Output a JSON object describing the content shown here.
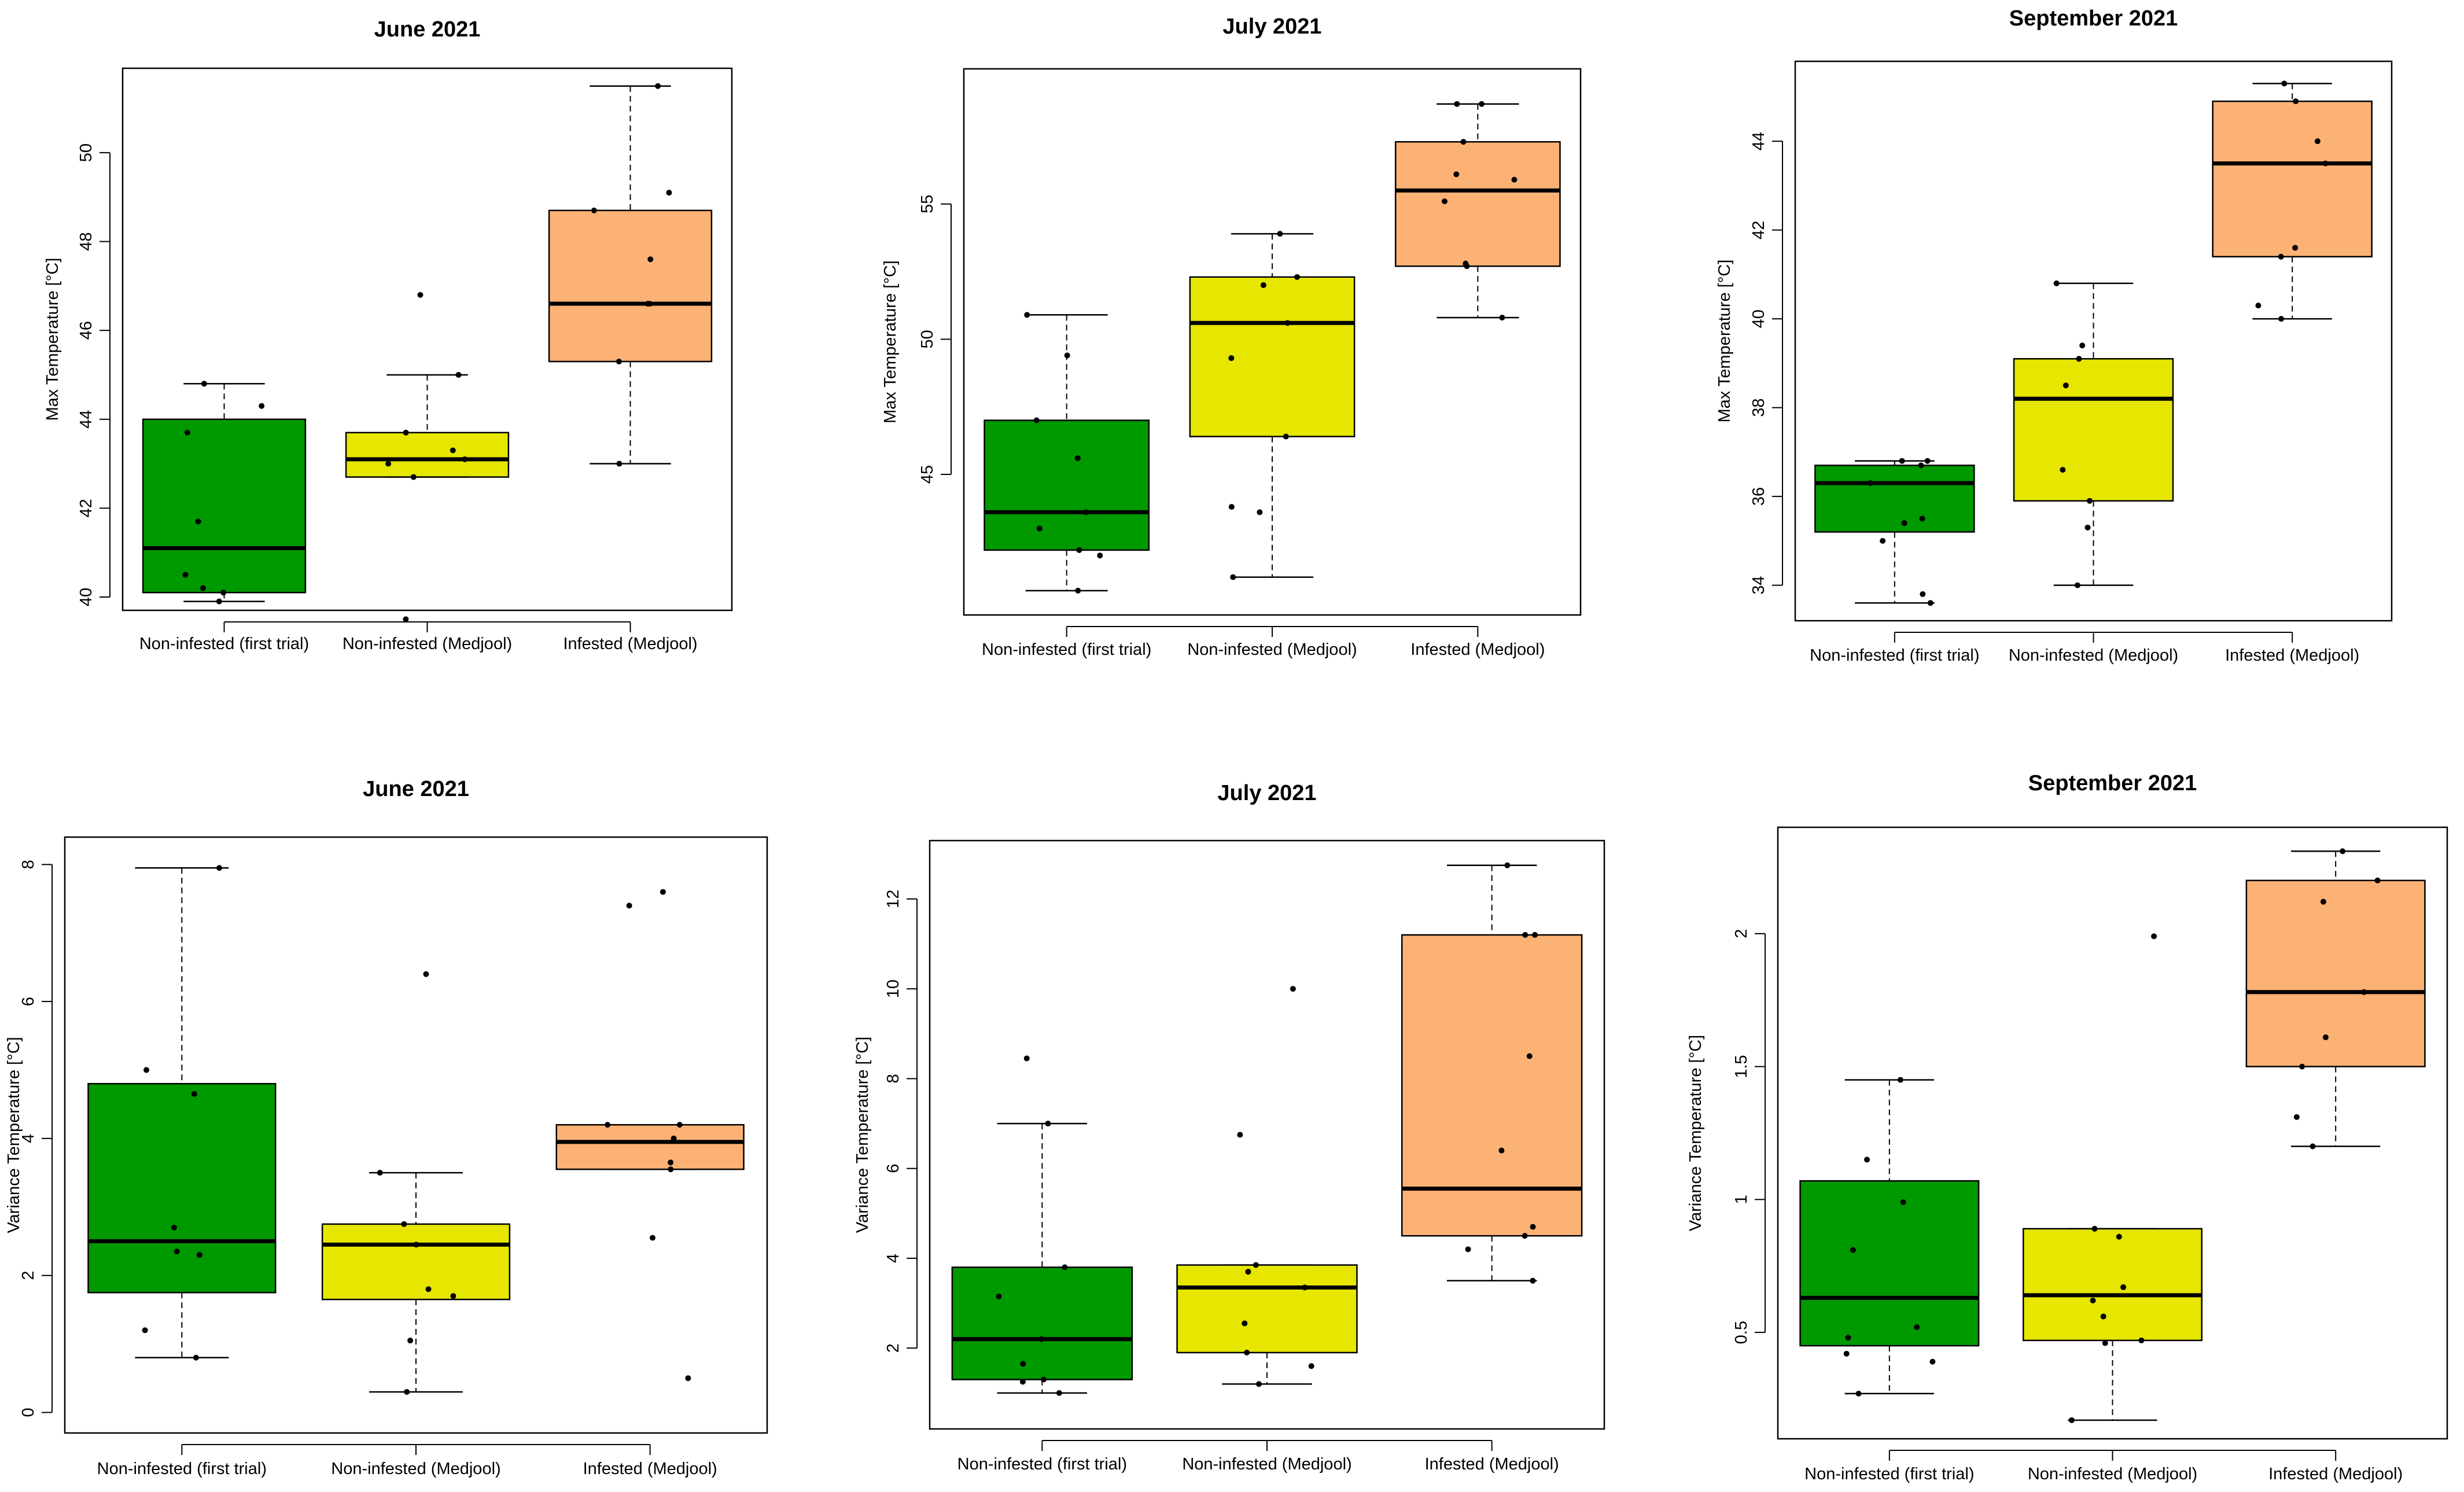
{
  "figure": {
    "colors": {
      "non_infested_first": "#009900",
      "non_infested_medjool": "#E6E600",
      "infested_medjool": "#FDB275",
      "box_border": "#000000"
    }
  },
  "chart_data": [
    {
      "type": "box",
      "title": "June 2021",
      "ylabel": "Max Temperature [°C]",
      "xlabel": "",
      "ylim": [
        39.7,
        51.9
      ],
      "yticks": [
        40,
        42,
        44,
        46,
        48,
        50
      ],
      "categories": [
        "Non-infested (first trial)",
        "Non-infested (Medjool)",
        "Infested (Medjool)"
      ],
      "boxes": [
        {
          "whisker_low": 39.9,
          "q1": 40.1,
          "median": 41.1,
          "q3": 44.0,
          "whisker_high": 44.8
        },
        {
          "whisker_low": 42.7,
          "q1": 42.7,
          "median": 43.1,
          "q3": 43.7,
          "whisker_high": 45.0
        },
        {
          "whisker_low": 43.0,
          "q1": 45.3,
          "median": 46.6,
          "q3": 48.7,
          "whisker_high": 51.5
        }
      ],
      "points": [
        [
          39.9,
          40.1,
          40.2,
          40.5,
          41.7,
          43.7,
          44.3,
          44.8
        ],
        [
          39.5,
          42.7,
          43.0,
          43.1,
          43.3,
          43.7,
          45.0,
          46.8
        ],
        [
          43.0,
          45.3,
          46.6,
          46.6,
          47.6,
          48.7,
          49.1,
          51.5
        ]
      ]
    },
    {
      "type": "box",
      "title": "July 2021",
      "ylabel": "Max Temperature [°C]",
      "xlabel": "",
      "ylim": [
        39.8,
        60.0
      ],
      "yticks": [
        45,
        50,
        55
      ],
      "categories": [
        "Non-infested (first trial)",
        "Non-infested (Medjool)",
        "Infested (Medjool)"
      ],
      "boxes": [
        {
          "whisker_low": 40.7,
          "q1": 42.2,
          "median": 43.6,
          "q3": 47.0,
          "whisker_high": 50.9
        },
        {
          "whisker_low": 41.2,
          "q1": 46.4,
          "median": 50.6,
          "q3": 52.3,
          "whisker_high": 53.9
        },
        {
          "whisker_low": 50.8,
          "q1": 52.7,
          "median": 55.5,
          "q3": 57.3,
          "whisker_high": 58.7
        }
      ],
      "points": [
        [
          40.7,
          42.0,
          42.2,
          43.0,
          43.6,
          45.6,
          47.0,
          49.4,
          50.9
        ],
        [
          41.2,
          43.6,
          43.8,
          46.4,
          49.3,
          50.6,
          52.0,
          52.3,
          53.9
        ],
        [
          50.8,
          52.7,
          52.8,
          55.1,
          55.9,
          56.1,
          57.3,
          58.7,
          58.7
        ]
      ]
    },
    {
      "type": "box",
      "title": "September 2021",
      "ylabel": "Max Temperature [°C]",
      "xlabel": "",
      "ylim": [
        33.2,
        45.8
      ],
      "yticks": [
        34,
        36,
        38,
        40,
        42,
        44
      ],
      "categories": [
        "Non-infested (first trial)",
        "Non-infested (Medjool)",
        "Infested (Medjool)"
      ],
      "boxes": [
        {
          "whisker_low": 33.6,
          "q1": 35.2,
          "median": 36.3,
          "q3": 36.7,
          "whisker_high": 36.8
        },
        {
          "whisker_low": 34.0,
          "q1": 35.9,
          "median": 38.2,
          "q3": 39.1,
          "whisker_high": 40.8
        },
        {
          "whisker_low": 40.0,
          "q1": 41.4,
          "median": 43.5,
          "q3": 44.9,
          "whisker_high": 45.3
        }
      ],
      "points": [
        [
          33.6,
          33.8,
          35.0,
          35.4,
          35.5,
          36.3,
          36.7,
          36.8,
          36.8
        ],
        [
          34.0,
          35.3,
          35.9,
          36.6,
          38.5,
          39.1,
          39.4,
          40.8
        ],
        [
          40.0,
          40.3,
          41.4,
          41.6,
          43.5,
          44.0,
          44.9,
          45.3
        ]
      ]
    },
    {
      "type": "box",
      "title": "June 2021",
      "ylabel": "Variance Temperature [°C]",
      "xlabel": "",
      "ylim": [
        -0.3,
        8.4
      ],
      "yticks": [
        0,
        2,
        4,
        6,
        8
      ],
      "categories": [
        "Non-infested (first trial)",
        "Non-infested (Medjool)",
        "Infested (Medjool)"
      ],
      "boxes": [
        {
          "whisker_low": 0.8,
          "q1": 1.75,
          "median": 2.5,
          "q3": 4.8,
          "whisker_high": 7.95
        },
        {
          "whisker_low": 0.3,
          "q1": 1.65,
          "median": 2.45,
          "q3": 2.75,
          "whisker_high": 3.5
        },
        {
          "whisker_low": 3.55,
          "q1": 3.55,
          "median": 3.95,
          "q3": 4.2,
          "whisker_high": 4.2
        }
      ],
      "points": [
        [
          0.8,
          1.2,
          2.3,
          2.35,
          2.7,
          4.65,
          5.0,
          7.95
        ],
        [
          0.3,
          1.05,
          1.7,
          1.8,
          2.45,
          2.75,
          3.5,
          6.4
        ],
        [
          0.5,
          2.55,
          3.55,
          3.65,
          4.0,
          4.2,
          4.2,
          7.4,
          7.6
        ]
      ]
    },
    {
      "type": "box",
      "title": "July 2021",
      "ylabel": "Variance Temperature [°C]",
      "xlabel": "",
      "ylim": [
        0.2,
        13.3
      ],
      "yticks": [
        2,
        4,
        6,
        8,
        10,
        12
      ],
      "categories": [
        "Non-infested (first trial)",
        "Non-infested (Medjool)",
        "Infested (Medjool)"
      ],
      "boxes": [
        {
          "whisker_low": 1.0,
          "q1": 1.3,
          "median": 2.2,
          "q3": 3.8,
          "whisker_high": 7.0
        },
        {
          "whisker_low": 1.2,
          "q1": 1.9,
          "median": 3.35,
          "q3": 3.85,
          "whisker_high": 3.85
        },
        {
          "whisker_low": 3.5,
          "q1": 4.5,
          "median": 5.55,
          "q3": 11.2,
          "whisker_high": 12.75
        }
      ],
      "points": [
        [
          1.0,
          1.25,
          1.3,
          1.65,
          2.2,
          3.15,
          3.8,
          7.0,
          8.45
        ],
        [
          1.2,
          1.6,
          1.9,
          2.55,
          3.35,
          3.7,
          3.85,
          6.75,
          10.0
        ],
        [
          3.5,
          4.2,
          4.5,
          4.7,
          6.4,
          8.5,
          11.2,
          11.2,
          12.75
        ]
      ]
    },
    {
      "type": "box",
      "title": "September 2021",
      "ylabel": "Variance Temperature [°C]",
      "xlabel": "",
      "ylim": [
        0.1,
        2.4
      ],
      "yticks": [
        0.5,
        1.0,
        1.5,
        2.0
      ],
      "categories": [
        "Non-infested (first trial)",
        "Non-infested (Medjool)",
        "Infested (Medjool)"
      ],
      "boxes": [
        {
          "whisker_low": 0.27,
          "q1": 0.45,
          "median": 0.63,
          "q3": 1.07,
          "whisker_high": 1.45
        },
        {
          "whisker_low": 0.17,
          "q1": 0.47,
          "median": 0.64,
          "q3": 0.89,
          "whisker_high": 0.89
        },
        {
          "whisker_low": 1.2,
          "q1": 1.5,
          "median": 1.78,
          "q3": 2.2,
          "whisker_high": 2.31
        }
      ],
      "points": [
        [
          0.27,
          0.39,
          0.42,
          0.48,
          0.52,
          0.81,
          0.99,
          1.15,
          1.45
        ],
        [
          0.17,
          0.46,
          0.47,
          0.56,
          0.62,
          0.67,
          0.86,
          0.89,
          1.99
        ],
        [
          1.2,
          1.31,
          1.5,
          1.61,
          1.78,
          2.12,
          2.2,
          2.31
        ]
      ]
    }
  ]
}
